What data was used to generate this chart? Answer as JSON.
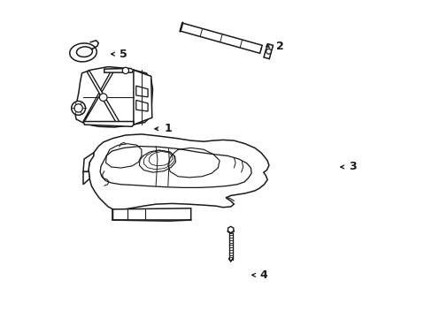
{
  "background_color": "#ffffff",
  "line_color": "#1a1a1a",
  "figsize": [
    4.89,
    3.6
  ],
  "dpi": 100,
  "callout_positions": {
    "1": [
      0.335,
      0.595,
      0.295,
      0.595
    ],
    "2": [
      0.685,
      0.855,
      0.645,
      0.855
    ],
    "3": [
      0.915,
      0.475,
      0.878,
      0.475
    ],
    "4": [
      0.635,
      0.135,
      0.6,
      0.135
    ],
    "5": [
      0.195,
      0.83,
      0.158,
      0.83
    ]
  }
}
